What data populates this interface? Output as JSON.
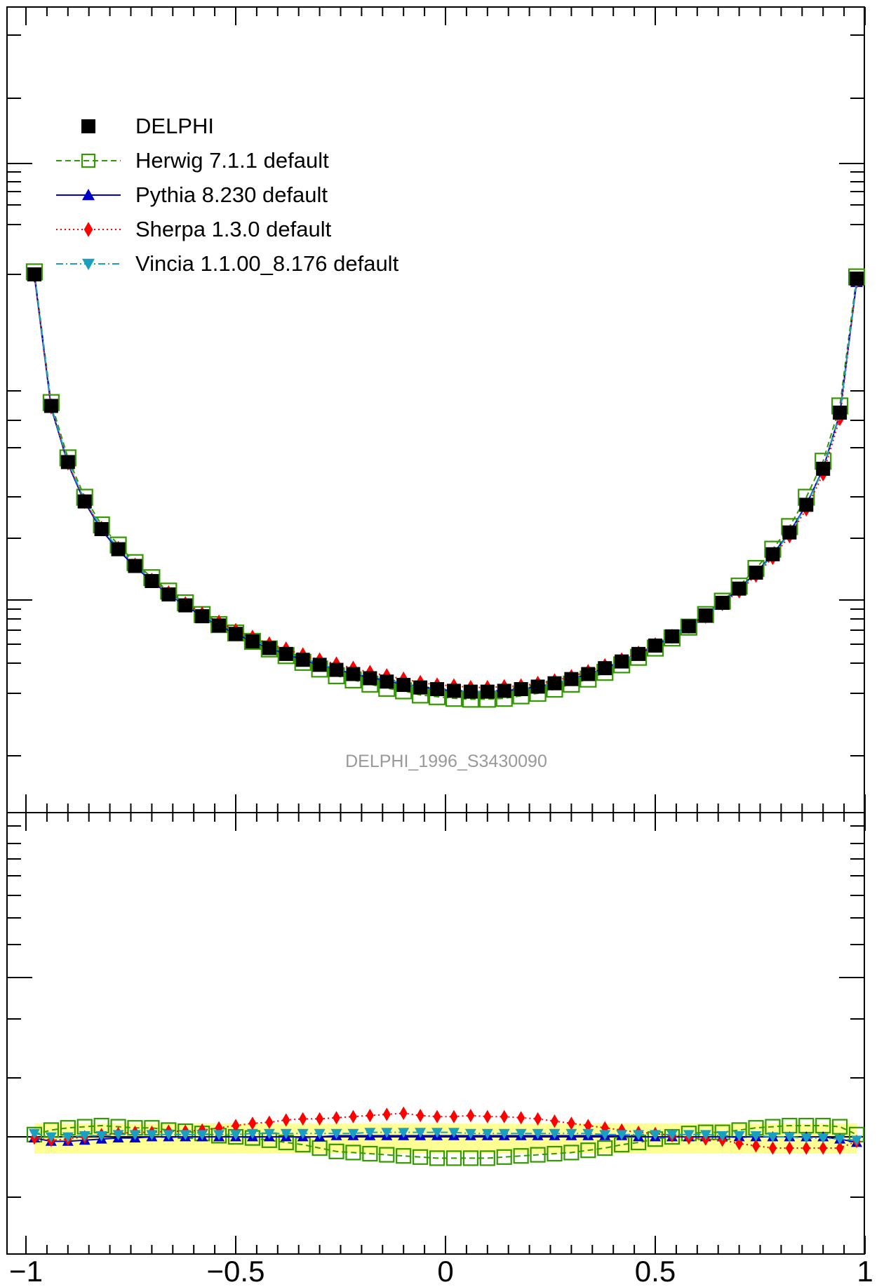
{
  "chart_data": [
    {
      "type": "scatter",
      "panel": "main",
      "annotation": "DELPHI_1996_S3430090",
      "xlim": [
        -1,
        1
      ],
      "x": [
        -0.98,
        -0.94,
        -0.9,
        -0.86,
        -0.82,
        -0.78,
        -0.74,
        -0.7,
        -0.66,
        -0.62,
        -0.58,
        -0.54,
        -0.5,
        -0.46,
        -0.42,
        -0.38,
        -0.34,
        -0.3,
        -0.26,
        -0.22,
        -0.18,
        -0.14,
        -0.1,
        -0.06,
        -0.02,
        0.02,
        0.06,
        0.1,
        0.14,
        0.18,
        0.22,
        0.26,
        0.3,
        0.34,
        0.38,
        0.42,
        0.46,
        0.5,
        0.54,
        0.58,
        0.62,
        0.66,
        0.7,
        0.74,
        0.78,
        0.82,
        0.86,
        0.9,
        0.94,
        0.98
      ],
      "legend": [
        {
          "label": "DELPHI",
          "color": "#000000",
          "marker": "square-filled",
          "line": "none"
        },
        {
          "label": "Herwig 7.1.1 default",
          "color": "#339900",
          "marker": "square-open",
          "line": "dashed"
        },
        {
          "label": "Pythia 8.230 default",
          "color": "#0000cc",
          "marker": "triangle-up",
          "line": "solid"
        },
        {
          "label": "Sherpa 1.3.0 default",
          "color": "#ff0000",
          "marker": "diamond",
          "line": "dotted"
        },
        {
          "label": "Vincia 1.1.00_8.176 default",
          "color": "#1a9fbf",
          "marker": "triangle-down",
          "line": "dashdot"
        }
      ],
      "series": [
        {
          "name": "DELPHI",
          "values": [
            0.8,
            0.643,
            0.576,
            0.529,
            0.496,
            0.472,
            0.452,
            0.434,
            0.418,
            0.405,
            0.392,
            0.381,
            0.371,
            0.362,
            0.354,
            0.347,
            0.34,
            0.334,
            0.328,
            0.323,
            0.318,
            0.314,
            0.31,
            0.307,
            0.305,
            0.303,
            0.302,
            0.302,
            0.303,
            0.305,
            0.308,
            0.312,
            0.317,
            0.323,
            0.33,
            0.338,
            0.347,
            0.357,
            0.368,
            0.38,
            0.393,
            0.408,
            0.425,
            0.444,
            0.466,
            0.492,
            0.525,
            0.568,
            0.635,
            0.795
          ]
        },
        {
          "name": "Herwig 7.1.1 default",
          "values": [
            0.803,
            0.647,
            0.581,
            0.534,
            0.501,
            0.477,
            0.456,
            0.438,
            0.422,
            0.408,
            0.394,
            0.382,
            0.372,
            0.362,
            0.353,
            0.345,
            0.337,
            0.329,
            0.321,
            0.316,
            0.311,
            0.306,
            0.303,
            0.298,
            0.296,
            0.294,
            0.293,
            0.293,
            0.294,
            0.297,
            0.3,
            0.305,
            0.311,
            0.317,
            0.325,
            0.334,
            0.343,
            0.354,
            0.366,
            0.379,
            0.394,
            0.41,
            0.428,
            0.449,
            0.472,
            0.499,
            0.534,
            0.577,
            0.643,
            0.797
          ]
        },
        {
          "name": "Pythia 8.230 default",
          "values": [
            0.799,
            0.641,
            0.574,
            0.528,
            0.495,
            0.471,
            0.451,
            0.434,
            0.418,
            0.405,
            0.392,
            0.381,
            0.371,
            0.362,
            0.354,
            0.347,
            0.34,
            0.334,
            0.329,
            0.323,
            0.319,
            0.315,
            0.311,
            0.308,
            0.305,
            0.303,
            0.302,
            0.302,
            0.303,
            0.305,
            0.308,
            0.312,
            0.317,
            0.323,
            0.33,
            0.338,
            0.347,
            0.357,
            0.368,
            0.38,
            0.393,
            0.408,
            0.425,
            0.444,
            0.466,
            0.492,
            0.525,
            0.568,
            0.634,
            0.791
          ]
        },
        {
          "name": "Sherpa 1.3.0 default",
          "values": [
            0.799,
            0.642,
            0.575,
            0.529,
            0.497,
            0.473,
            0.453,
            0.435,
            0.42,
            0.407,
            0.395,
            0.385,
            0.375,
            0.367,
            0.359,
            0.353,
            0.346,
            0.34,
            0.335,
            0.33,
            0.325,
            0.321,
            0.317,
            0.313,
            0.31,
            0.309,
            0.307,
            0.307,
            0.308,
            0.309,
            0.312,
            0.315,
            0.32,
            0.326,
            0.333,
            0.34,
            0.348,
            0.358,
            0.368,
            0.38,
            0.392,
            0.407,
            0.422,
            0.441,
            0.462,
            0.488,
            0.52,
            0.562,
            0.628,
            0.792
          ]
        },
        {
          "name": "Vincia 1.1.00_8.176 default",
          "values": [
            0.802,
            0.643,
            0.576,
            0.53,
            0.497,
            0.473,
            0.453,
            0.435,
            0.419,
            0.406,
            0.393,
            0.382,
            0.372,
            0.363,
            0.355,
            0.348,
            0.341,
            0.335,
            0.329,
            0.324,
            0.32,
            0.316,
            0.312,
            0.308,
            0.305,
            0.303,
            0.302,
            0.302,
            0.303,
            0.305,
            0.308,
            0.312,
            0.317,
            0.323,
            0.33,
            0.338,
            0.347,
            0.357,
            0.368,
            0.38,
            0.393,
            0.408,
            0.424,
            0.443,
            0.465,
            0.491,
            0.524,
            0.567,
            0.633,
            0.793
          ]
        }
      ]
    },
    {
      "type": "scatter",
      "panel": "ratio",
      "xlim": [
        -1,
        1
      ],
      "x_tick_labels": [
        "−1",
        "−0.5",
        "0",
        "0.5",
        "1"
      ],
      "x_ticks": [
        -1,
        -0.5,
        0,
        0.5,
        1
      ],
      "band_color": "#ffff66",
      "x": [
        -0.98,
        -0.94,
        -0.9,
        -0.86,
        -0.82,
        -0.78,
        -0.74,
        -0.7,
        -0.66,
        -0.62,
        -0.58,
        -0.54,
        -0.5,
        -0.46,
        -0.42,
        -0.38,
        -0.34,
        -0.3,
        -0.26,
        -0.22,
        -0.18,
        -0.14,
        -0.1,
        -0.06,
        -0.02,
        0.02,
        0.06,
        0.1,
        0.14,
        0.18,
        0.22,
        0.26,
        0.3,
        0.34,
        0.38,
        0.42,
        0.46,
        0.5,
        0.54,
        0.58,
        0.62,
        0.66,
        0.7,
        0.74,
        0.78,
        0.82,
        0.86,
        0.9,
        0.94,
        0.98
      ],
      "series": [
        {
          "name": "Herwig 7.1.1 default",
          "values": [
            1.002,
            1.006,
            1.008,
            1.009,
            1.01,
            1.009,
            1.008,
            1.008,
            1.006,
            1.005,
            1.003,
            1.001,
            1.0,
            0.999,
            0.997,
            0.995,
            0.993,
            0.99,
            0.987,
            0.986,
            0.985,
            0.984,
            0.983,
            0.982,
            0.981,
            0.981,
            0.981,
            0.981,
            0.982,
            0.983,
            0.984,
            0.985,
            0.986,
            0.988,
            0.99,
            0.993,
            0.995,
            0.998,
            1.0,
            1.003,
            1.004,
            1.004,
            1.006,
            1.008,
            1.009,
            1.01,
            1.01,
            1.01,
            1.009,
            1.002
          ]
        },
        {
          "name": "Pythia 8.230 default",
          "values": [
            0.999,
            0.996,
            0.996,
            0.997,
            0.998,
            0.999,
            0.999,
            1.0,
            1.0,
            1.0,
            1.0,
            1.0,
            1.0,
            1.0,
            1.0,
            1.0,
            1.0,
            1.0,
            1.001,
            1.001,
            1.001,
            1.001,
            1.001,
            1.001,
            1.001,
            1.001,
            1.001,
            1.001,
            1.001,
            1.001,
            1.001,
            1.001,
            1.001,
            1.001,
            1.001,
            1.001,
            1.0,
            1.0,
            1.0,
            1.0,
            1.0,
            1.0,
            1.0,
            1.0,
            1.0,
            1.0,
            1.0,
            1.0,
            0.998,
            0.995
          ]
        },
        {
          "name": "Sherpa 1.3.0 default",
          "values": [
            0.999,
            0.997,
            0.998,
            1.0,
            1.002,
            1.003,
            1.004,
            1.004,
            1.005,
            1.005,
            1.006,
            1.008,
            1.01,
            1.012,
            1.013,
            1.015,
            1.016,
            1.016,
            1.017,
            1.018,
            1.019,
            1.02,
            1.021,
            1.019,
            1.018,
            1.018,
            1.019,
            1.018,
            1.018,
            1.017,
            1.016,
            1.014,
            1.012,
            1.01,
            1.008,
            1.006,
            1.004,
            1.003,
            1.001,
            0.999,
            0.998,
            0.997,
            0.994,
            0.992,
            0.99,
            0.99,
            0.99,
            0.99,
            0.99,
            0.996
          ]
        },
        {
          "name": "Vincia 1.1.00_8.176 default",
          "values": [
            1.003,
            1.0,
            1.0,
            1.001,
            1.001,
            1.002,
            1.002,
            1.002,
            1.002,
            1.002,
            1.002,
            1.002,
            1.002,
            1.003,
            1.003,
            1.003,
            1.003,
            1.003,
            1.003,
            1.003,
            1.004,
            1.004,
            1.004,
            1.004,
            1.004,
            1.004,
            1.003,
            1.003,
            1.003,
            1.003,
            1.003,
            1.003,
            1.003,
            1.003,
            1.002,
            1.002,
            1.002,
            1.002,
            1.002,
            1.002,
            1.002,
            1.001,
            1.001,
            1.001,
            1.0,
            1.0,
            0.999,
            0.999,
            0.998,
            0.997
          ]
        }
      ]
    }
  ]
}
